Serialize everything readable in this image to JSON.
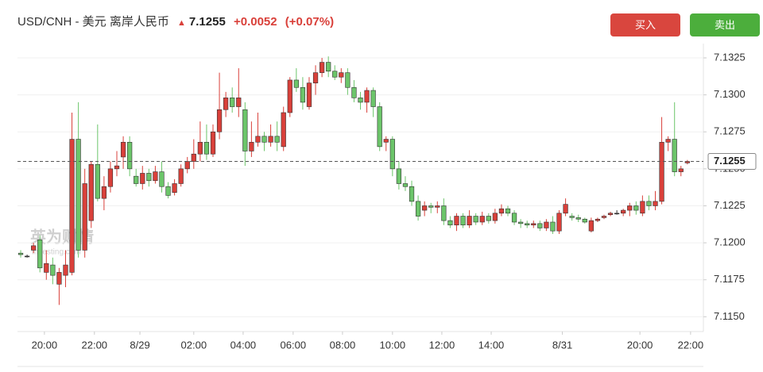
{
  "header": {
    "symbol": "USD/CNH - 美元 离岸人民币",
    "price": 7.1255,
    "change": "+0.0052",
    "change_pct": "(+0.07%)"
  },
  "buttons": {
    "buy": "买入",
    "sell": "卖出"
  },
  "watermark": {
    "brand": "英为财情",
    "site": "Investing.com"
  },
  "chart_data": {
    "type": "candlestick",
    "up_color": "#d9403a",
    "down_color": "#6cc56a",
    "current_price": 7.1255,
    "xlim": [
      -0.5,
      106.5
    ],
    "xticks": [
      {
        "value": 3.7,
        "label": "20:00"
      },
      {
        "value": 11.5,
        "label": "22:00"
      },
      {
        "value": 18.6,
        "label": "8/29"
      },
      {
        "value": 27,
        "label": "02:00"
      },
      {
        "value": 34.7,
        "label": "04:00"
      },
      {
        "value": 42.5,
        "label": "06:00"
      },
      {
        "value": 50.2,
        "label": "08:00"
      },
      {
        "value": 58,
        "label": "10:00"
      },
      {
        "value": 65.7,
        "label": "12:00"
      },
      {
        "value": 73.4,
        "label": "14:00"
      },
      {
        "value": 84.5,
        "label": "8/31"
      },
      {
        "value": 96.6,
        "label": "20:00"
      },
      {
        "value": 104.5,
        "label": "22:00"
      }
    ],
    "ylim": [
      7.114,
      7.134
    ],
    "yticks": [
      7.1325,
      {
        "value": 7.13,
        "label": "7.1300"
      },
      7.1275,
      {
        "value": 7.125,
        "label": "7.1250"
      },
      7.1225,
      {
        "value": 7.12,
        "label": "7.1200"
      },
      7.1175,
      {
        "value": 7.115,
        "label": "7.1150"
      }
    ],
    "grid": true,
    "candles": [
      [
        7.1193,
        7.1195,
        7.119,
        7.1192
      ],
      [
        7.1191,
        7.1192,
        7.119,
        7.1191
      ],
      [
        7.1195,
        7.12,
        7.1193,
        7.1198
      ],
      [
        7.1202,
        7.1205,
        7.118,
        7.1183
      ],
      [
        7.118,
        7.1195,
        7.1175,
        7.1186
      ],
      [
        7.1185,
        7.119,
        7.1172,
        7.1178
      ],
      [
        7.1172,
        7.1183,
        7.1158,
        7.118
      ],
      [
        7.1178,
        7.1195,
        7.117,
        7.1185
      ],
      [
        7.118,
        7.1288,
        7.1178,
        7.127
      ],
      [
        7.127,
        7.1295,
        7.119,
        7.1195
      ],
      [
        7.1195,
        7.125,
        7.119,
        7.124
      ],
      [
        7.1215,
        7.1255,
        7.121,
        7.1253
      ],
      [
        7.1253,
        7.128,
        7.1228,
        7.123
      ],
      [
        7.123,
        7.1245,
        7.1222,
        7.1238
      ],
      [
        7.1238,
        7.1255,
        7.1234,
        7.125
      ],
      [
        7.125,
        7.1262,
        7.1245,
        7.1252
      ],
      [
        7.1258,
        7.1272,
        7.125,
        7.1268
      ],
      [
        7.1268,
        7.1272,
        7.1245,
        7.125
      ],
      [
        7.1245,
        7.125,
        7.1238,
        7.124
      ],
      [
        7.124,
        7.1252,
        7.1236,
        7.1247
      ],
      [
        7.1247,
        7.125,
        7.1238,
        7.1242
      ],
      [
        7.1242,
        7.1252,
        7.124,
        7.1248
      ],
      [
        7.1248,
        7.1255,
        7.1234,
        7.1238
      ],
      [
        7.1238,
        7.1241,
        7.123,
        7.1232
      ],
      [
        7.1234,
        7.1243,
        7.1232,
        7.124
      ],
      [
        7.124,
        7.1253,
        7.1238,
        7.125
      ],
      [
        7.125,
        7.1258,
        7.1247,
        7.1255
      ],
      [
        7.1255,
        7.127,
        7.125,
        7.126
      ],
      [
        7.126,
        7.1282,
        7.1255,
        7.1268
      ],
      [
        7.1268,
        7.128,
        7.1256,
        7.126
      ],
      [
        7.126,
        7.128,
        7.1258,
        7.1275
      ],
      [
        7.1275,
        7.1315,
        7.127,
        7.129
      ],
      [
        7.129,
        7.1302,
        7.1285,
        7.1298
      ],
      [
        7.1298,
        7.1305,
        7.1288,
        7.1292
      ],
      [
        7.1292,
        7.1318,
        7.1285,
        7.1298
      ],
      [
        7.129,
        7.1295,
        7.1252,
        7.1262
      ],
      [
        7.1262,
        7.1282,
        7.1258,
        7.1268
      ],
      [
        7.1268,
        7.1288,
        7.1265,
        7.1272
      ],
      [
        7.1272,
        7.1275,
        7.1262,
        7.1268
      ],
      [
        7.1268,
        7.128,
        7.1265,
        7.1272
      ],
      [
        7.1272,
        7.1282,
        7.1262,
        7.1268
      ],
      [
        7.1265,
        7.1292,
        7.1262,
        7.1288
      ],
      [
        7.1288,
        7.1312,
        7.1285,
        7.131
      ],
      [
        7.131,
        7.1318,
        7.1302,
        7.1305
      ],
      [
        7.1305,
        7.1312,
        7.129,
        7.1295
      ],
      [
        7.1292,
        7.1312,
        7.129,
        7.1308
      ],
      [
        7.1308,
        7.132,
        7.13,
        7.1315
      ],
      [
        7.1315,
        7.1325,
        7.1312,
        7.1322
      ],
      [
        7.1322,
        7.1326,
        7.1312,
        7.1316
      ],
      [
        7.1316,
        7.132,
        7.131,
        7.1312
      ],
      [
        7.1312,
        7.1318,
        7.1308,
        7.1315
      ],
      [
        7.1315,
        7.1318,
        7.13,
        7.1305
      ],
      [
        7.1305,
        7.131,
        7.1295,
        7.1298
      ],
      [
        7.1298,
        7.1302,
        7.129,
        7.1295
      ],
      [
        7.1295,
        7.1305,
        7.1288,
        7.1303
      ],
      [
        7.1303,
        7.1305,
        7.1285,
        7.1292
      ],
      [
        7.1292,
        7.1295,
        7.1262,
        7.1265
      ],
      [
        7.1268,
        7.1272,
        7.1262,
        7.127
      ],
      [
        7.127,
        7.1272,
        7.1245,
        7.125
      ],
      [
        7.125,
        7.1255,
        7.1236,
        7.124
      ],
      [
        7.124,
        7.1245,
        7.1235,
        7.1238
      ],
      [
        7.1238,
        7.1242,
        7.1225,
        7.1228
      ],
      [
        7.1228,
        7.1232,
        7.1215,
        7.1218
      ],
      [
        7.1222,
        7.1228,
        7.1218,
        7.1225
      ],
      [
        7.1225,
        7.1227,
        7.122,
        7.1224
      ],
      [
        7.1224,
        7.1228,
        7.122,
        7.1225
      ],
      [
        7.1225,
        7.123,
        7.1212,
        7.1215
      ],
      [
        7.1215,
        7.1218,
        7.121,
        7.1212
      ],
      [
        7.1212,
        7.122,
        7.1208,
        7.1218
      ],
      [
        7.1218,
        7.122,
        7.121,
        7.1212
      ],
      [
        7.1212,
        7.1222,
        7.121,
        7.1218
      ],
      [
        7.1218,
        7.122,
        7.1212,
        7.1214
      ],
      [
        7.1214,
        7.1221,
        7.1212,
        7.1218
      ],
      [
        7.1218,
        7.122,
        7.1213,
        7.1215
      ],
      [
        7.1215,
        7.1223,
        7.1213,
        7.122
      ],
      [
        7.122,
        7.1226,
        7.1218,
        7.1223
      ],
      [
        7.1223,
        7.1225,
        7.1218,
        7.122
      ],
      [
        7.122,
        7.1222,
        7.1212,
        7.1214
      ],
      [
        7.1214,
        7.1216,
        7.121,
        7.1213
      ],
      [
        7.1213,
        7.1215,
        7.121,
        7.1212
      ],
      [
        7.1212,
        7.1215,
        7.121,
        7.1213
      ],
      [
        7.1213,
        7.1215,
        7.1208,
        7.121
      ],
      [
        7.121,
        7.1216,
        7.1208,
        7.1214
      ],
      [
        7.1214,
        7.1218,
        7.1206,
        7.1208
      ],
      [
        7.1208,
        7.1222,
        7.1206,
        7.122
      ],
      [
        7.122,
        7.123,
        7.1218,
        7.1226
      ],
      [
        7.1218,
        7.122,
        7.1215,
        7.1217
      ],
      [
        7.1217,
        7.1219,
        7.1214,
        7.1216
      ],
      [
        7.1216,
        7.1217,
        7.1213,
        7.1214
      ],
      [
        7.1208,
        7.1217,
        7.1207,
        7.1215
      ],
      [
        7.1215,
        7.1217,
        7.1214,
        7.1216
      ],
      [
        7.1217,
        7.1219,
        7.1216,
        7.1218
      ],
      [
        7.1219,
        7.1221,
        7.1218,
        7.122
      ],
      [
        7.122,
        7.1222,
        7.1219,
        7.122
      ],
      [
        7.122,
        7.1223,
        7.1218,
        7.1222
      ],
      [
        7.1222,
        7.1227,
        7.1218,
        7.1225
      ],
      [
        7.1225,
        7.1228,
        7.1219,
        7.1222
      ],
      [
        7.122,
        7.1232,
        7.1218,
        7.1228
      ],
      [
        7.1228,
        7.1232,
        7.1222,
        7.1225
      ],
      [
        7.1225,
        7.1235,
        7.1222,
        7.1228
      ],
      [
        7.1228,
        7.1285,
        7.1226,
        7.1268
      ],
      [
        7.1268,
        7.1272,
        7.1262,
        7.127
      ],
      [
        7.127,
        7.1295,
        7.1245,
        7.1248
      ],
      [
        7.1248,
        7.1252,
        7.1245,
        7.125
      ],
      [
        7.1254,
        7.1256,
        7.1253,
        7.1255
      ]
    ]
  }
}
